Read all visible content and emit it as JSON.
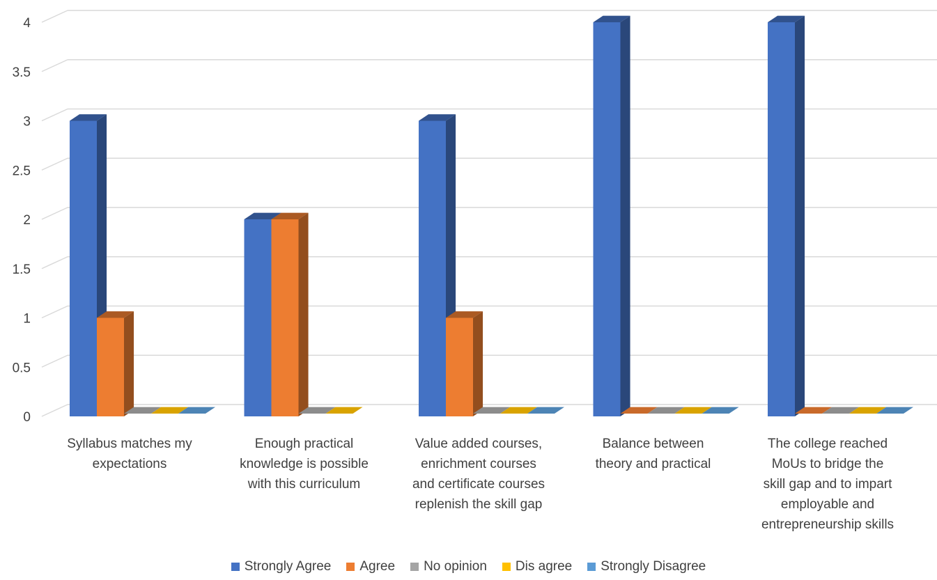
{
  "chart_data": {
    "type": "bar",
    "title": "",
    "xlabel": "",
    "ylabel": "",
    "ylim": [
      0,
      4
    ],
    "y_ticks": [
      "0",
      "0.5",
      "1",
      "1.5",
      "2",
      "2.5",
      "3",
      "3.5",
      "4"
    ],
    "grid": true,
    "legend_position": "bottom",
    "style": "3d-clustered-column",
    "categories": [
      "Syllabus matches my expectations",
      "Enough practical knowledge is possible with this curriculum",
      "Value added courses, enrichment courses and certificate courses replenish the skill gap",
      "Balance between theory and practical",
      "The college reached MoUs to bridge the skill gap and to impart employable and entrepreneurship skills"
    ],
    "category_lines": [
      [
        "Syllabus matches my",
        "expectations"
      ],
      [
        "Enough practical",
        "knowledge is possible",
        "with this curriculum"
      ],
      [
        "Value added courses,",
        "enrichment courses",
        "and certificate courses",
        "replenish the skill gap"
      ],
      [
        "Balance between",
        "theory and practical"
      ],
      [
        "The college reached",
        "MoUs to bridge the",
        "skill gap and to impart",
        "employable and",
        "entrepreneurship skills"
      ]
    ],
    "series": [
      {
        "name": "Strongly Agree",
        "color": "#4472C4",
        "values": [
          3,
          2,
          3,
          4,
          4
        ]
      },
      {
        "name": "Agree",
        "color": "#ED7D31",
        "values": [
          1,
          2,
          1,
          0,
          0
        ]
      },
      {
        "name": "No opinion",
        "color": "#A5A5A5",
        "values": [
          0,
          0,
          0,
          0,
          0
        ]
      },
      {
        "name": "Dis agree",
        "color": "#FFC000",
        "values": [
          0,
          0,
          0,
          0,
          0
        ]
      },
      {
        "name": "Strongly Disagree",
        "color": "#5B9BD5",
        "values": [
          0,
          null,
          0,
          0,
          0
        ]
      }
    ]
  }
}
